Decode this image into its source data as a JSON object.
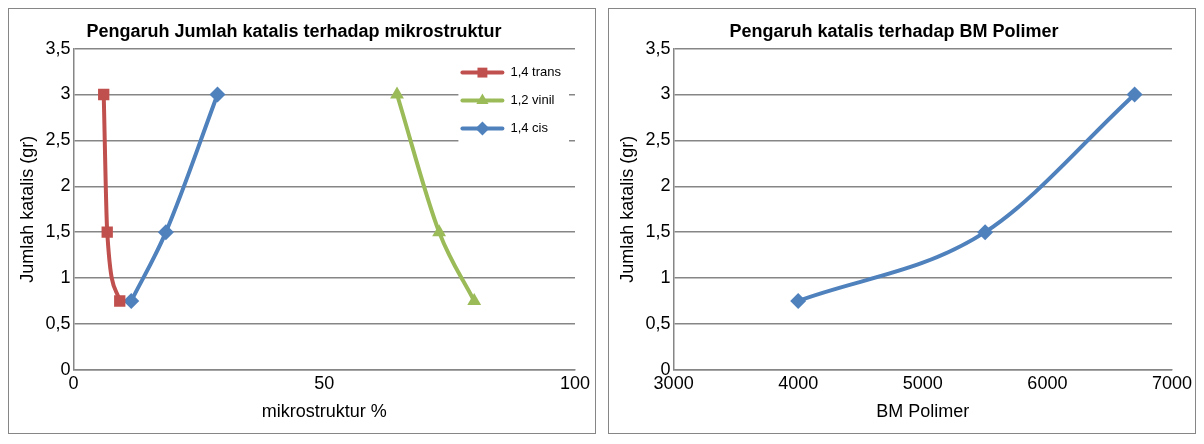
{
  "chart_data": [
    {
      "type": "line",
      "title": "Pengaruh Jumlah katalis terhadap mikrostruktur",
      "xlabel": "mikrostruktur %",
      "ylabel": "Jumlah katalis (gr)",
      "xlim": [
        0,
        100
      ],
      "xticks": [
        0,
        50,
        100
      ],
      "ylim": [
        0,
        3.5
      ],
      "yticks": [
        0,
        {
          "value": 0.5,
          "label": "0,5"
        },
        1,
        {
          "value": 1.5,
          "label": "1,5"
        },
        2,
        {
          "value": 2.5,
          "label": "2,5"
        },
        3,
        {
          "value": 3.5,
          "label": "3,5"
        }
      ],
      "grid": "y",
      "legend": "top right",
      "line_style": "solid",
      "series": [
        {
          "name": "1,4 trans",
          "color": "#c0504d",
          "marker": "square",
          "x": [
            6.0,
            6.7,
            9.2
          ],
          "values": [
            3,
            1.5,
            0.75
          ]
        },
        {
          "name": "1,2 vinil",
          "color": "#9bbb59",
          "marker": "triangle",
          "x": [
            64.5,
            72.9,
            79.9
          ],
          "values": [
            3,
            1.5,
            0.75
          ]
        },
        {
          "name": "1,4 cis",
          "color": "#4f81bd",
          "marker": "diamond",
          "x": [
            11.5,
            18.4,
            28.7
          ],
          "values": [
            0.75,
            1.5,
            3
          ]
        }
      ]
    },
    {
      "type": "line",
      "title": "Pengaruh katalis terhadap BM Polimer",
      "xlabel": "BM Polimer",
      "ylabel": "Jumlah katalis (gr)",
      "xlim": [
        3000,
        7000
      ],
      "xticks": [
        3000,
        4000,
        5000,
        6000,
        7000
      ],
      "ylim": [
        0,
        3.5
      ],
      "yticks": [
        0,
        {
          "value": 0.5,
          "label": "0,5"
        },
        1,
        {
          "value": 1.5,
          "label": "1,5"
        },
        2,
        {
          "value": 2.5,
          "label": "2,5"
        },
        3,
        {
          "value": 3.5,
          "label": "3,5"
        }
      ],
      "grid": "y",
      "legend": false,
      "line_style": "solid",
      "series": [
        {
          "color": "#4f81bd",
          "marker": "diamond",
          "x": [
            4000,
            5500,
            6700
          ],
          "values": [
            0.75,
            1.5,
            3
          ]
        }
      ]
    }
  ]
}
